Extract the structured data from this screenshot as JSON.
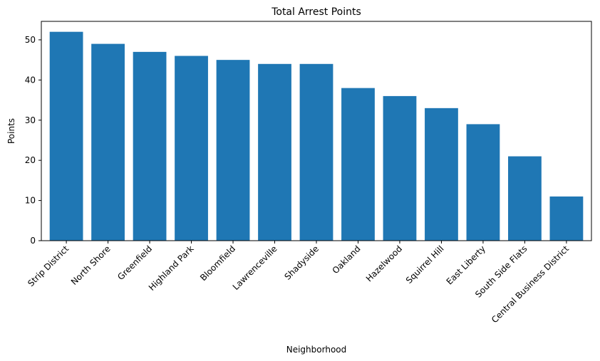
{
  "chart_data": {
    "type": "bar",
    "title": "Total Arrest Points",
    "xlabel": "Neighborhood",
    "ylabel": "Points",
    "categories": [
      "Strip District",
      "North Shore",
      "Greenfield",
      "Highland Park",
      "Bloomfield",
      "Lawrenceville",
      "Shadyside",
      "Oakland",
      "Hazelwood",
      "Squirrel Hill",
      "East Liberty",
      "South Side Flats",
      "Central Business District"
    ],
    "values": [
      52,
      49,
      47,
      46,
      45,
      44,
      44,
      38,
      36,
      33,
      29,
      21,
      11
    ],
    "ylim": [
      0,
      54.6
    ],
    "yticks": [
      0,
      10,
      20,
      30,
      40,
      50
    ],
    "bar_color": "#1f77b4",
    "grid": false,
    "legend": "none"
  }
}
